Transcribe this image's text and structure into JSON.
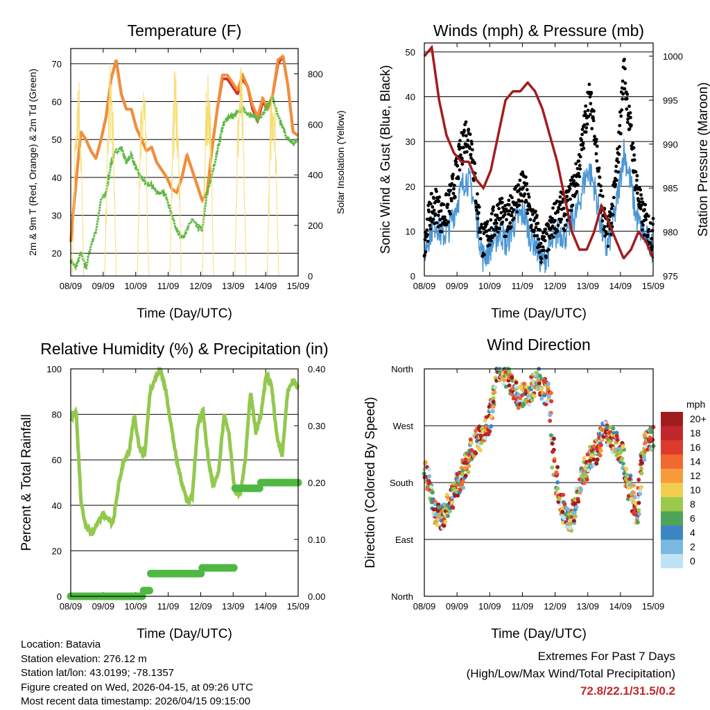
{
  "chart_data": [
    {
      "type": "line",
      "title": "Temperature (F)",
      "xlabel": "Time (Day/UTC)",
      "ylabel": "2m & 9m T (Red, Orange) & 2m Td (Green)",
      "y2label": "Solar Insolation (Yellow)",
      "x_ticks": [
        "08/09",
        "09/09",
        "10/09",
        "11/09",
        "12/09",
        "13/09",
        "14/09",
        "15/09"
      ],
      "ylim": [
        14,
        74
      ],
      "y_ticks": [
        20,
        30,
        40,
        50,
        60,
        70
      ],
      "y2lim": [
        0,
        900
      ],
      "y2_ticks": [
        0,
        200,
        400,
        600,
        800
      ],
      "series": [
        {
          "name": "2m T",
          "color": "#d42d27",
          "values": [
            23,
            38,
            52,
            50,
            47,
            45,
            50,
            56,
            66,
            71,
            62,
            58,
            58,
            53,
            50,
            47,
            48,
            44,
            42,
            40,
            37,
            36,
            40,
            46,
            42,
            38,
            34,
            36,
            48,
            58,
            66,
            66,
            64,
            62,
            66,
            64,
            58,
            55,
            60,
            58,
            62,
            70,
            72,
            64,
            52,
            51
          ]
        },
        {
          "name": "9m T",
          "color": "#f08f3a",
          "values": [
            23,
            38,
            52,
            50,
            47,
            45,
            50,
            56,
            66,
            71,
            62,
            58,
            58,
            53,
            50,
            47,
            48,
            44,
            42,
            40,
            37,
            36,
            40,
            46,
            42,
            38,
            34,
            36,
            48,
            58,
            67,
            67,
            65,
            63,
            67,
            64,
            59,
            56,
            61,
            58,
            62,
            71,
            72,
            64,
            52,
            51
          ]
        },
        {
          "name": "2m Td",
          "color": "#5cb845",
          "values": [
            18,
            16,
            20,
            16,
            22,
            26,
            34,
            36,
            44,
            47,
            48,
            44,
            46,
            42,
            40,
            38,
            38,
            36,
            36,
            35,
            30,
            26,
            24,
            26,
            29,
            27,
            26,
            36,
            41,
            47,
            53,
            56,
            56,
            57,
            58,
            57,
            56,
            55,
            57,
            59,
            61,
            56,
            53,
            50,
            49,
            50
          ]
        },
        {
          "name": "Solar Insolation",
          "color": "#f7dc6f",
          "axis": "y2",
          "peak": 860
        }
      ]
    },
    {
      "type": "line",
      "title": "Winds (mph) & Pressure (mb)",
      "xlabel": "Time (Day/UTC)",
      "ylabel": "Sonic Wind & Gust (Blue, Black)",
      "y2label": "Station Pressure (Maroon)",
      "x_ticks": [
        "08/09",
        "09/09",
        "10/09",
        "11/09",
        "12/09",
        "13/09",
        "14/09",
        "15/09"
      ],
      "ylim": [
        0,
        52
      ],
      "y_ticks": [
        0,
        10,
        20,
        30,
        40,
        50
      ],
      "y2lim": [
        975,
        1001.5
      ],
      "y2_ticks": [
        975,
        980,
        985,
        990,
        995,
        1000
      ],
      "series": [
        {
          "name": "Sonic Wind",
          "color": "#4b97d5",
          "values": [
            5,
            10,
            12,
            9,
            10,
            14,
            18,
            22,
            20,
            12,
            4,
            6,
            8,
            10,
            7,
            11,
            13,
            14,
            9,
            7,
            3,
            5,
            8,
            10,
            9,
            12,
            14,
            20,
            24,
            20,
            12,
            6,
            10,
            18,
            28,
            22,
            14,
            10,
            8,
            6
          ]
        },
        {
          "name": "Gust",
          "color": "#000000",
          "values": [
            8,
            14,
            16,
            13,
            15,
            20,
            26,
            32,
            30,
            16,
            7,
            10,
            12,
            15,
            11,
            16,
            18,
            20,
            14,
            11,
            6,
            8,
            12,
            15,
            14,
            18,
            22,
            30,
            40,
            34,
            18,
            9,
            14,
            26,
            46,
            34,
            22,
            14,
            11,
            9
          ]
        },
        {
          "name": "Station Pressure",
          "color": "#a31c1c",
          "values": [
            1000,
            1001,
            995,
            991,
            989,
            988,
            988,
            986,
            985,
            987,
            991,
            995,
            996,
            996,
            997,
            996,
            994,
            991,
            988,
            984,
            980,
            978,
            978,
            980,
            983,
            981,
            979,
            977,
            978,
            980,
            979,
            977
          ]
        }
      ]
    },
    {
      "type": "line",
      "title": "Relative Humidity (%) & Precipitation (in)",
      "xlabel": "Time (Day/UTC)",
      "ylabel": "Percent & Total Rainfall",
      "x_ticks": [
        "08/09",
        "09/09",
        "10/09",
        "11/09",
        "12/09",
        "13/09",
        "14/09",
        "15/09"
      ],
      "ylim": [
        0,
        100
      ],
      "y_ticks": [
        0,
        20,
        40,
        60,
        80,
        100
      ],
      "y2lim": [
        0,
        0.4
      ],
      "y2_ticks": [
        "0.00",
        "0.10",
        "0.20",
        "0.30",
        "0.40"
      ],
      "series": [
        {
          "name": "Relative Humidity",
          "color": "#93c84f",
          "values": [
            78,
            82,
            40,
            30,
            28,
            32,
            36,
            34,
            32,
            48,
            60,
            62,
            80,
            65,
            62,
            90,
            96,
            100,
            90,
            75,
            60,
            50,
            42,
            44,
            75,
            82,
            60,
            48,
            55,
            80,
            70,
            46,
            44,
            60,
            90,
            72,
            80,
            98,
            92,
            70,
            62,
            90,
            95,
            92
          ]
        },
        {
          "name": "Total Precipitation",
          "color": "#4fb843",
          "values": [
            0,
            0,
            0,
            0,
            0,
            0,
            0,
            0,
            0,
            0.01,
            0.04,
            0.04,
            0.04,
            0.04,
            0.04,
            0.04,
            0.05,
            0.05,
            0.05,
            0.05,
            0.19,
            0.19,
            0.19,
            0.2,
            0.2,
            0.2,
            0.2,
            0.2
          ]
        }
      ]
    },
    {
      "type": "scatter",
      "title": "Wind Direction",
      "xlabel": "Time (Day/UTC)",
      "ylabel": "Direction (Colored By Speed)",
      "x_ticks": [
        "08/09",
        "09/09",
        "10/09",
        "11/09",
        "12/09",
        "13/09",
        "14/09",
        "15/09"
      ],
      "y_ticks": [
        "North",
        "East",
        "South",
        "West",
        "North"
      ],
      "ylim": [
        0,
        360
      ],
      "legend_title": "mph",
      "legend_labels": [
        "20+",
        "18",
        "16",
        "14",
        "12",
        "10",
        "8",
        "6",
        "4",
        "2",
        "0"
      ],
      "legend_colors": [
        "#9f1b1e",
        "#c0282d",
        "#dc3b2c",
        "#ef6a2c",
        "#f89a3c",
        "#f2cd50",
        "#9bc94a",
        "#4fa35a",
        "#3c86c1",
        "#7ab8e2",
        "#bfe2f5"
      ],
      "points_directions": [
        200,
        185,
        130,
        125,
        130,
        150,
        175,
        185,
        210,
        230,
        250,
        250,
        270,
        290,
        360,
        355,
        350,
        330,
        315,
        320,
        320,
        335,
        345,
        325,
        320,
        200,
        160,
        130,
        120,
        140,
        180,
        200,
        215,
        230,
        250,
        260,
        250,
        240,
        230,
        180,
        160,
        130,
        230,
        250,
        250
      ]
    }
  ],
  "footer": {
    "location": "Location: Batavia",
    "elevation": "Station elevation: 276.12 m",
    "latlon": "Station lat/lon: 43.0199; -78.1357",
    "created": "Figure created on Wed, 2026-04-15, at 09:26 UTC",
    "timestamp": "Most recent data timestamp: 2026/04/15 09:15:00",
    "extremes_title": "Extremes For Past 7 Days",
    "extremes_sub": "(High/Low/Max Wind/Total Precipitation)",
    "extremes_values": "72.8/22.1/31.5/0.2"
  }
}
